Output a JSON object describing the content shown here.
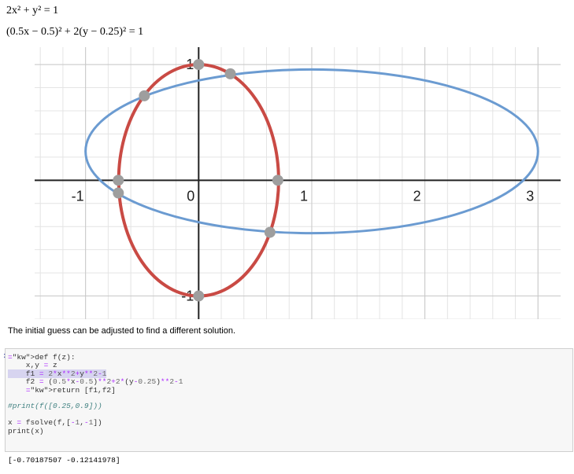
{
  "equations": {
    "eq1": "2x² + y² = 1",
    "eq2": "(0.5x − 0.5)² + 2(y − 0.25)² = 1"
  },
  "graph": {
    "x_ticks": [
      "-1",
      "0",
      "1",
      "2",
      "3"
    ],
    "y_ticks": [
      "1",
      "-1"
    ],
    "curve1_color": "#c94a44",
    "curve2_color": "#6b9bd1",
    "point_color": "#9e9e9e",
    "x_range": [
      -1.45,
      3.2
    ],
    "y_range": [
      -1.2,
      1.15
    ],
    "intersections": [
      {
        "x": 0.0,
        "y": 1.0
      },
      {
        "x": 0.28,
        "y": 0.92
      },
      {
        "x": -0.48,
        "y": 0.73
      },
      {
        "x": -0.71,
        "y": 0.0
      },
      {
        "x": -0.71,
        "y": -0.11
      },
      {
        "x": 0.7,
        "y": 0.0
      },
      {
        "x": 0.63,
        "y": -0.45
      },
      {
        "x": 0.0,
        "y": -1.0
      }
    ]
  },
  "note": "The initial guess can be adjusted to find a different solution.",
  "cell": {
    "prompt": ":",
    "lines": [
      "def f(z):",
      "    x,y = z",
      "    f1 = 2*x**2+y**2-1",
      "    f2 = (0.5*x-0.5)**2+2*(y-0.25)**2-1",
      "    return [f1,f2]",
      "",
      "#print(f([0.25,0.9]))",
      "",
      "x = fsolve(f,[-1,-1])",
      "print(x)"
    ]
  },
  "output": "[-0.70187507 -0.12141978]"
}
